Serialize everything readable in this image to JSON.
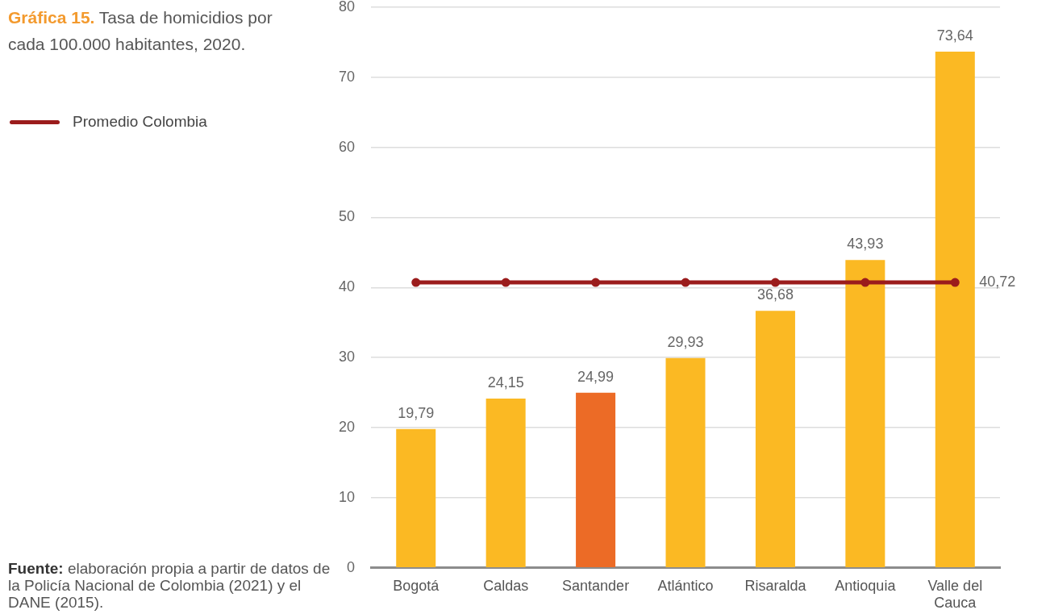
{
  "chart_data": {
    "type": "bar",
    "title": "Gráfica 15. Tasa de homicidios por cada 100.000 habitantes, 2020.",
    "categories": [
      "Bogotá",
      "Caldas",
      "Santander",
      "Atlántico",
      "Risaralda",
      "Antioquia",
      "Valle del Cauca"
    ],
    "series": [
      {
        "colors": [
          "#fbb923",
          "#fbb923",
          "#ec6b26",
          "#fbb923",
          "#fbb923",
          "#fbb923",
          "#fbb923"
        ],
        "values": [
          19.79,
          24.15,
          24.99,
          29.93,
          36.68,
          43.93,
          73.64
        ],
        "value_labels": [
          "19,79",
          "24,15",
          "24,99",
          "29,93",
          "36,68",
          "43,93",
          "73,64"
        ]
      },
      {
        "type": "line",
        "name": "Promedio Colombia",
        "color": "#9b1c1c",
        "values": [
          40.72,
          40.72,
          40.72,
          40.72,
          40.72,
          40.72,
          40.72
        ],
        "value_labels": [
          null,
          null,
          null,
          null,
          null,
          null,
          "40,72"
        ]
      }
    ],
    "ylim": [
      0,
      80
    ],
    "yticks": [
      0,
      10,
      20,
      30,
      40,
      50,
      60,
      70,
      80
    ],
    "grid": "y",
    "legend": "left",
    "marker": "circle",
    "annotations": [
      "Fuente: elaboración propia a partir de datos de la Policía Nacional de Colombia (2021) y el DANE (2015)."
    ]
  }
}
